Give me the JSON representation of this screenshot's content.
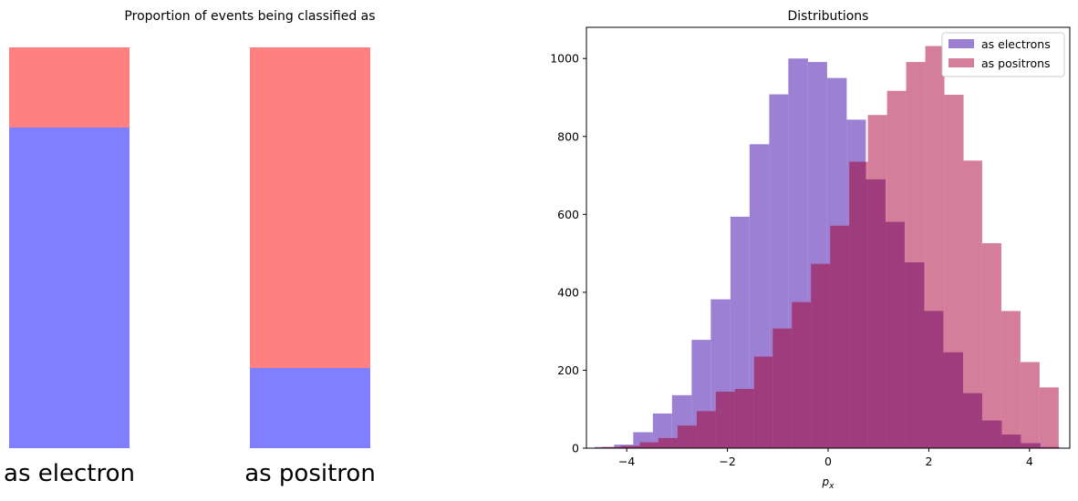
{
  "chart_data": [
    {
      "type": "bar",
      "title": "Proportion of events being classified as",
      "categories": [
        "as electron",
        "as positron"
      ],
      "series": [
        {
          "color": "#8080ff",
          "values": [
            0.8,
            0.2
          ]
        },
        {
          "color": "#ff8080",
          "values": [
            0.2,
            0.8
          ]
        }
      ],
      "stacked": true,
      "ylim": [
        0,
        1
      ],
      "axes_visible": false
    },
    {
      "type": "histogram",
      "title": "Distributions",
      "xlabel": "p_x",
      "xlabel_display": "p",
      "xlabel_sub": "x",
      "xlim": [
        -4.8,
        4.8
      ],
      "ylim": [
        0,
        1080
      ],
      "xticks": [
        -4,
        -2,
        0,
        2,
        4
      ],
      "xtick_labels": [
        "−4",
        "−2",
        "0",
        "2",
        "4"
      ],
      "yticks": [
        0,
        200,
        400,
        600,
        800,
        1000
      ],
      "legend_position": "top-right",
      "overlap_color": "#9f3c7e",
      "series": [
        {
          "name": "as electrons",
          "color": "#9b80d3",
          "bin_edges": [
            -4.64,
            -4.25,
            -3.87,
            -3.48,
            -3.1,
            -2.71,
            -2.33,
            -1.94,
            -1.56,
            -1.17,
            -0.79,
            -0.4,
            -0.02,
            0.37,
            0.75,
            1.14,
            1.52,
            1.91,
            2.29,
            2.68,
            3.06,
            3.45,
            3.83,
            4.22,
            4.6
          ],
          "counts": [
            3,
            9,
            41,
            89,
            136,
            278,
            382,
            594,
            780,
            908,
            1000,
            991,
            950,
            843,
            690,
            581,
            477,
            352,
            246,
            141,
            71,
            35,
            13,
            3
          ]
        },
        {
          "name": "as positrons",
          "color": "#d47e9b",
          "bin_edges": [
            -4.5,
            -4.12,
            -3.74,
            -3.37,
            -2.99,
            -2.61,
            -2.23,
            -1.85,
            -1.47,
            -1.1,
            -0.72,
            -0.34,
            0.04,
            0.42,
            0.79,
            1.17,
            1.55,
            1.93,
            2.31,
            2.69,
            3.06,
            3.44,
            3.82,
            4.2,
            4.58
          ],
          "counts": [
            3,
            6,
            15,
            26,
            58,
            95,
            145,
            152,
            235,
            307,
            375,
            473,
            571,
            735,
            855,
            917,
            991,
            1032,
            907,
            738,
            526,
            352,
            221,
            156
          ]
        }
      ]
    }
  ]
}
